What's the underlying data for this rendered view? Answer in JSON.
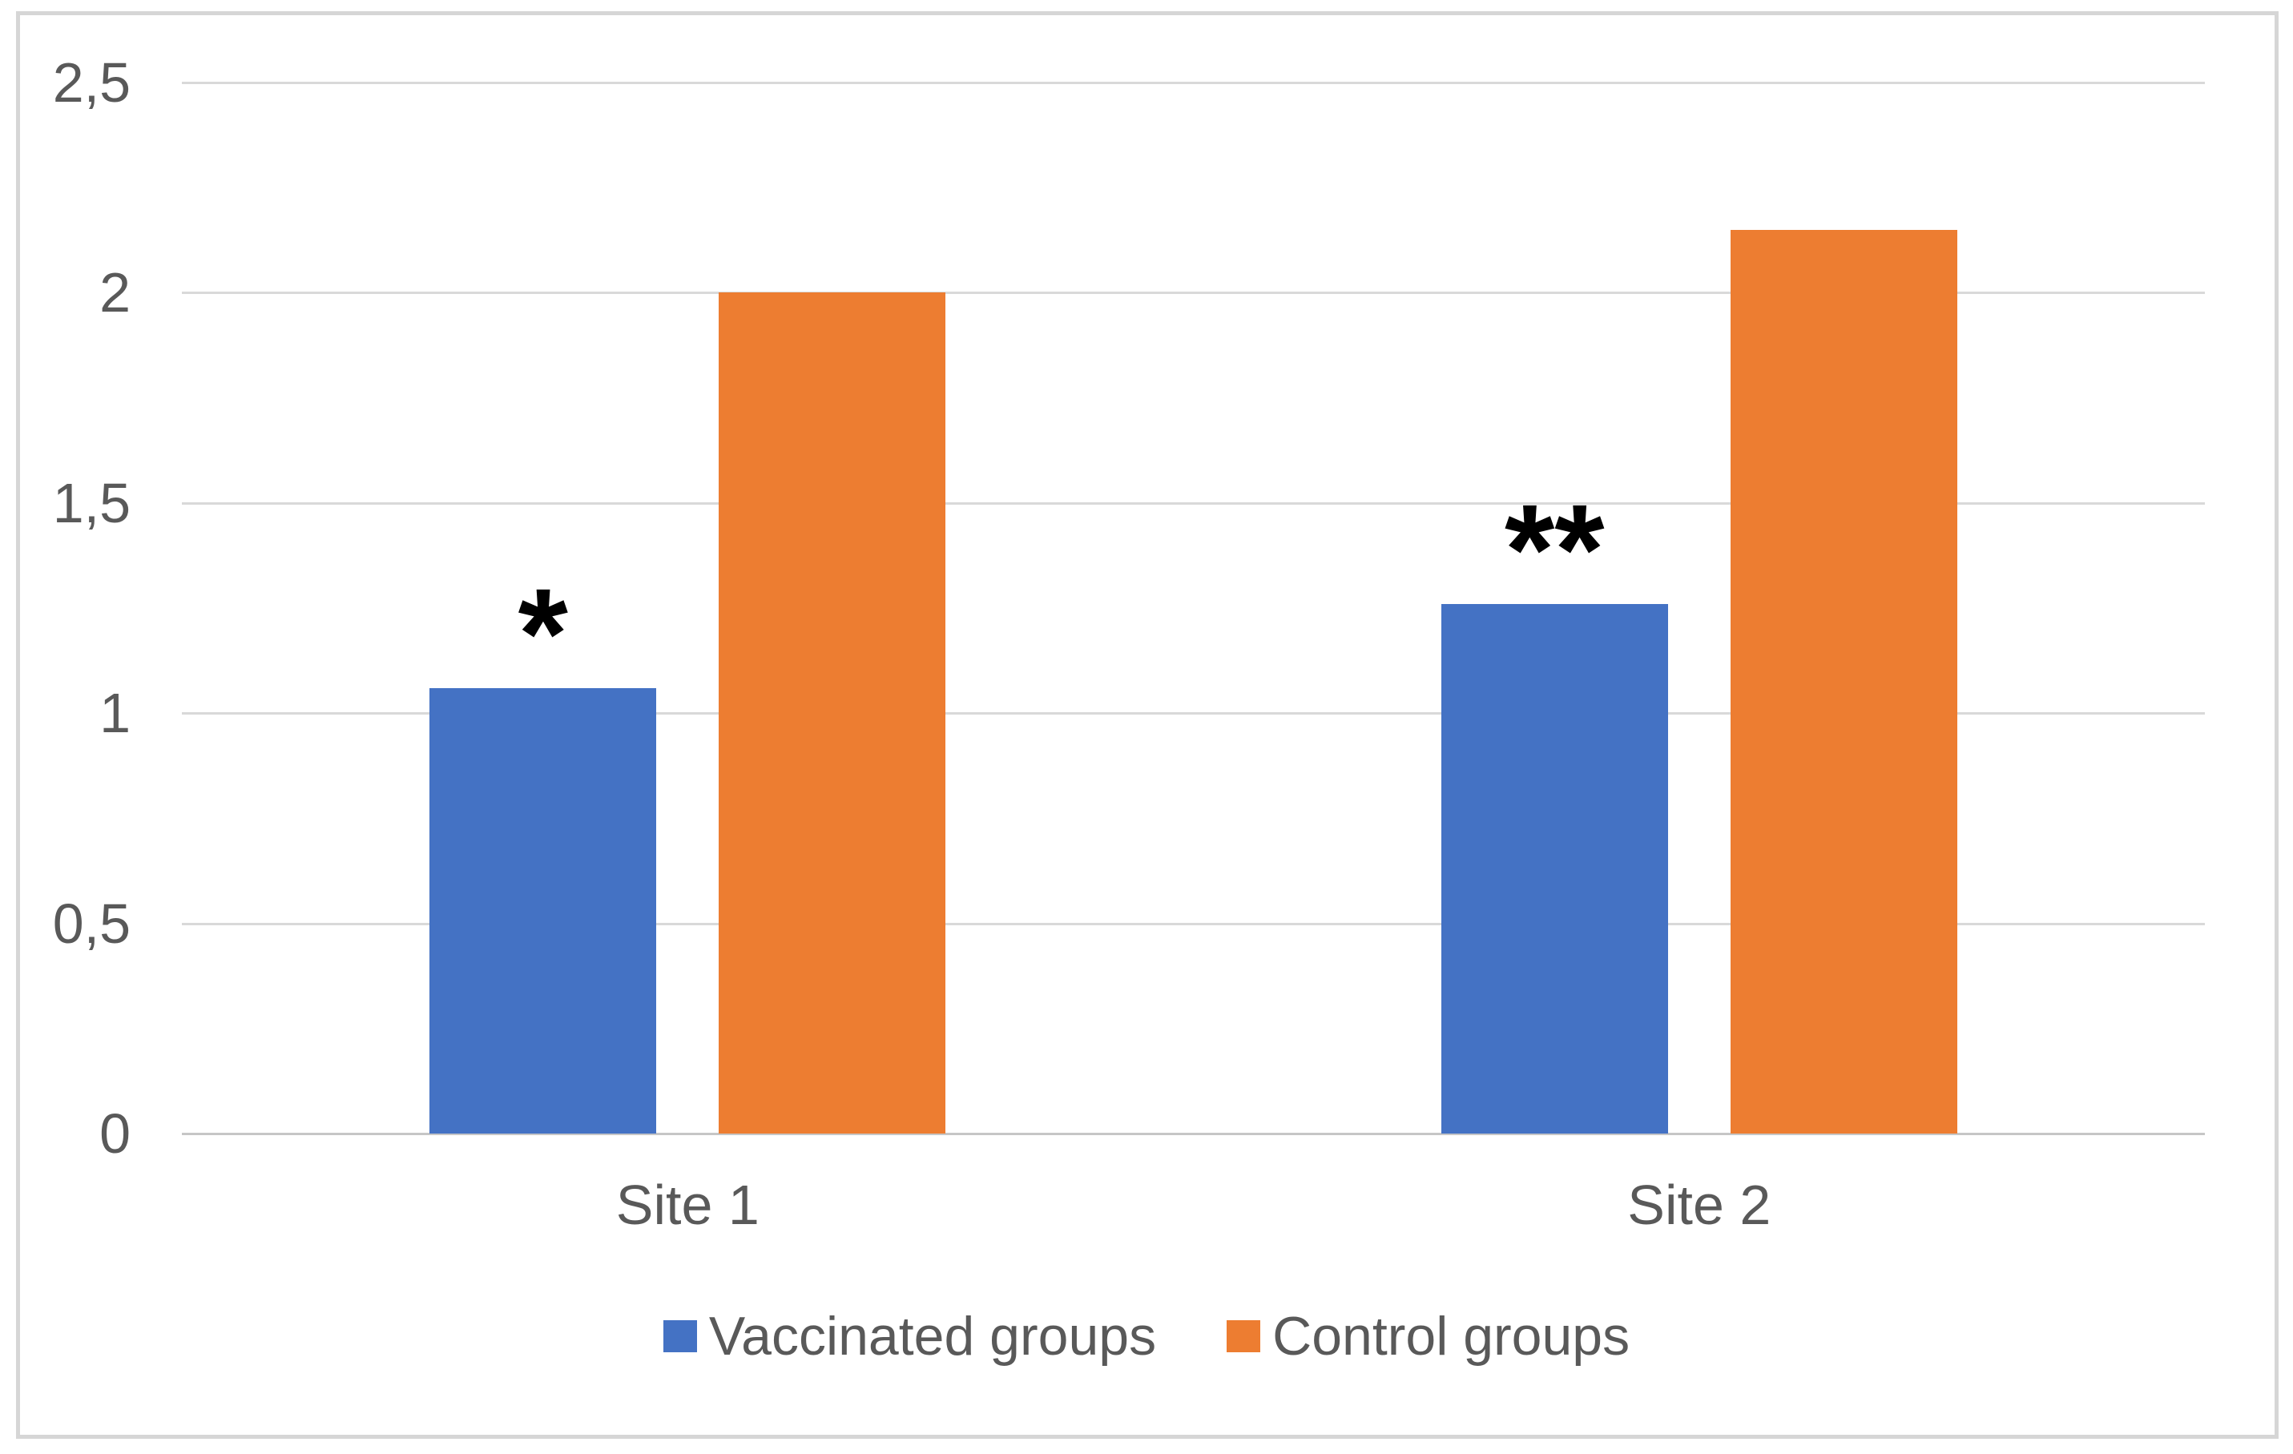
{
  "figure": {
    "background_color": "#FFFFFF",
    "frame_border_color": "#D6D6D6"
  },
  "chart_data": {
    "type": "bar",
    "title": "",
    "xlabel": "",
    "ylabel": "",
    "categories": [
      "Site 1",
      "Site 2"
    ],
    "series": [
      {
        "name": "Vaccinated groups",
        "color": "#4472C4",
        "values": [
          1.06,
          1.26
        ]
      },
      {
        "name": "Control groups",
        "color": "#ED7D31",
        "values": [
          2.0,
          2.15
        ]
      }
    ],
    "annotations": [
      {
        "text": "*",
        "series": "Vaccinated groups",
        "category": "Site 1"
      },
      {
        "text": "**",
        "series": "Vaccinated groups",
        "category": "Site 2"
      }
    ],
    "ylim": [
      0,
      2.5
    ],
    "y_ticks": [
      {
        "value": 0,
        "label": "0"
      },
      {
        "value": 0.5,
        "label": "0,5"
      },
      {
        "value": 1,
        "label": "1"
      },
      {
        "value": 1.5,
        "label": "1,5"
      },
      {
        "value": 2,
        "label": "2"
      },
      {
        "value": 2.5,
        "label": "2,5"
      }
    ],
    "decimal_separator": ",",
    "grid": true,
    "legend_position": "bottom",
    "gridline_color": "#D9D9D9",
    "axis_line_color": "#C6C6C6",
    "text_color": "#595959",
    "annotation_color": "#000000"
  }
}
